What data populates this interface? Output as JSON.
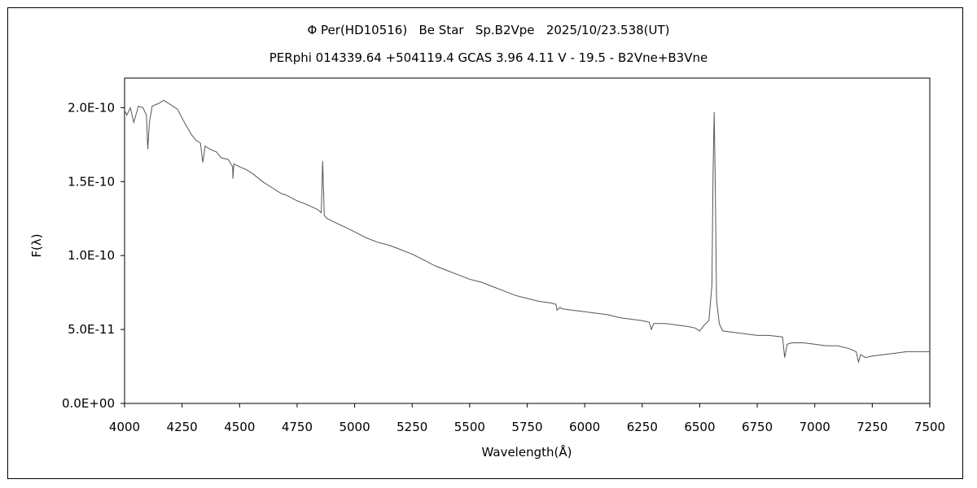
{
  "chart_data": {
    "type": "line",
    "title": "Φ Per(HD10516)   Be Star   Sp.B2Vpe   2025/10/23.538(UT)",
    "subtitle": "PERphi 014339.64 +504119.4 GCAS 3.96 4.11 V - 19.5 - B2Vne+B3Vne",
    "xlabel": "Wavelength(Å)",
    "ylabel": "F(λ)",
    "xlim": [
      4000,
      7500
    ],
    "ylim": [
      0,
      2.2e-10
    ],
    "xticks": [
      4000,
      4250,
      4500,
      4750,
      5000,
      5250,
      5500,
      5750,
      6000,
      6250,
      6500,
      6750,
      7000,
      7250,
      7500
    ],
    "yticks": [
      0,
      5e-11,
      1e-10,
      1.5e-10,
      2e-10
    ],
    "ytick_labels": [
      "0.0E+00",
      "5.0E-11",
      "1.0E-10",
      "1.5E-10",
      "2.0E-10"
    ],
    "grid": false,
    "line_color": "#555555",
    "series": [
      {
        "x": [
          4000,
          4010,
          4025,
          4040,
          4060,
          4080,
          4095,
          4101,
          4108,
          4120,
          4150,
          4170,
          4200,
          4230,
          4260,
          4290,
          4310,
          4330,
          4340,
          4345,
          4350,
          4370,
          4400,
          4420,
          4450,
          4470,
          4471,
          4475,
          4500,
          4530,
          4560,
          4600,
          4640,
          4680,
          4700,
          4750,
          4800,
          4840,
          4855,
          4861,
          4868,
          4880,
          4920,
          4960,
          5000,
          5050,
          5100,
          5150,
          5200,
          5250,
          5300,
          5350,
          5400,
          5450,
          5500,
          5550,
          5600,
          5650,
          5700,
          5750,
          5800,
          5850,
          5875,
          5880,
          5893,
          5900,
          5950,
          6000,
          6050,
          6100,
          6150,
          6200,
          6250,
          6280,
          6290,
          6300,
          6350,
          6400,
          6450,
          6480,
          6500,
          6520,
          6540,
          6553,
          6558,
          6563,
          6568,
          6573,
          6585,
          6600,
          6650,
          6700,
          6750,
          6800,
          6860,
          6869,
          6880,
          6900,
          6950,
          7000,
          7050,
          7100,
          7150,
          7180,
          7190,
          7200,
          7220,
          7250,
          7300,
          7350,
          7400,
          7450,
          7500
        ],
        "values": [
          1.98e-10,
          1.95e-10,
          2e-10,
          1.9e-10,
          2.01e-10,
          2e-10,
          1.95e-10,
          1.72e-10,
          1.9e-10,
          2.01e-10,
          2.03e-10,
          2.05e-10,
          2.02e-10,
          1.99e-10,
          1.9e-10,
          1.82e-10,
          1.78e-10,
          1.76e-10,
          1.63e-10,
          1.68e-10,
          1.74e-10,
          1.72e-10,
          1.7e-10,
          1.66e-10,
          1.65e-10,
          1.6e-10,
          1.52e-10,
          1.62e-10,
          1.6e-10,
          1.58e-10,
          1.55e-10,
          1.5e-10,
          1.46e-10,
          1.42e-10,
          1.41e-10,
          1.37e-10,
          1.34e-10,
          1.31e-10,
          1.29e-10,
          1.64e-10,
          1.27e-10,
          1.25e-10,
          1.22e-10,
          1.19e-10,
          1.16e-10,
          1.12e-10,
          1.09e-10,
          1.07e-10,
          1.04e-10,
          1.01e-10,
          9.7e-11,
          9.3e-11,
          9e-11,
          8.7e-11,
          8.4e-11,
          8.2e-11,
          7.9e-11,
          7.6e-11,
          7.3e-11,
          7.1e-11,
          6.9e-11,
          6.8e-11,
          6.7e-11,
          6.3e-11,
          6.5e-11,
          6.4e-11,
          6.3e-11,
          6.2e-11,
          6.1e-11,
          6e-11,
          5.8e-11,
          5.7e-11,
          5.6e-11,
          5.5e-11,
          5e-11,
          5.4e-11,
          5.4e-11,
          5.3e-11,
          5.2e-11,
          5.1e-11,
          4.9e-11,
          5.3e-11,
          5.6e-11,
          8e-11,
          1.55e-10,
          1.97e-10,
          1.45e-10,
          7e-11,
          5.4e-11,
          4.9e-11,
          4.8e-11,
          4.7e-11,
          4.6e-11,
          4.6e-11,
          4.5e-11,
          3.1e-11,
          4e-11,
          4.1e-11,
          4.1e-11,
          4e-11,
          3.9e-11,
          3.9e-11,
          3.7e-11,
          3.5e-11,
          2.8e-11,
          3.3e-11,
          3.1e-11,
          3.2e-11,
          3.3e-11,
          3.4e-11,
          3.5e-11,
          3.5e-11,
          3.5e-11
        ]
      }
    ]
  }
}
